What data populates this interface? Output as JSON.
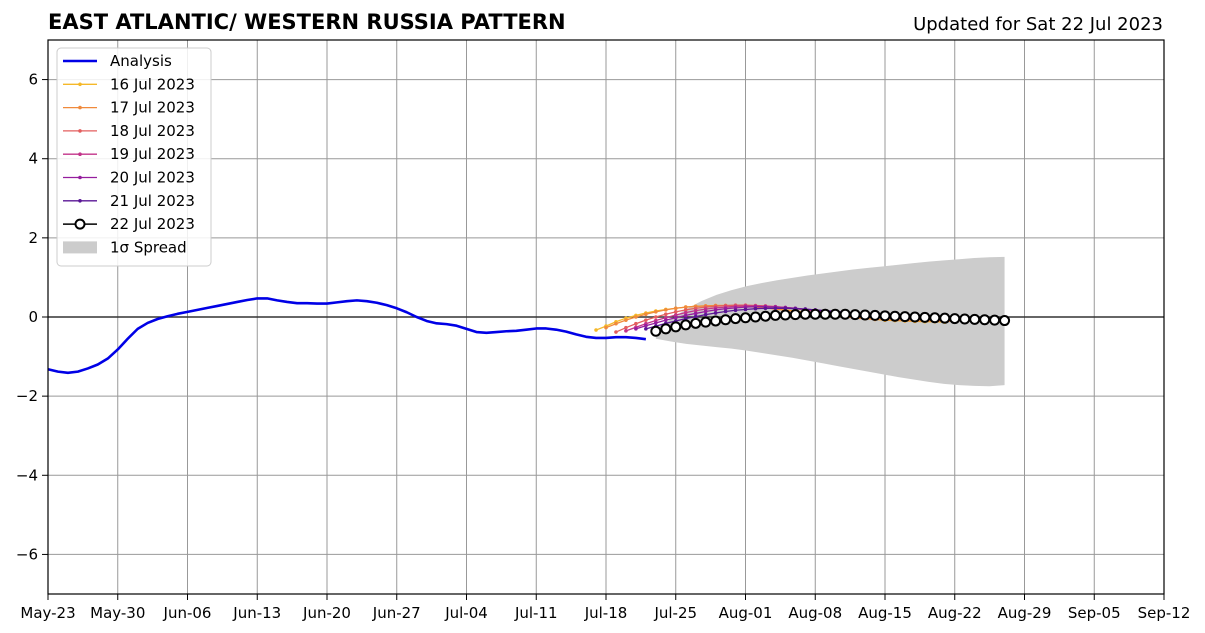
{
  "chart_data": {
    "type": "line",
    "title": "EAST ATLANTIC/ WESTERN RUSSIA PATTERN",
    "subtitle": "Updated for Sat 22 Jul 2023",
    "xlabel": "",
    "ylabel": "",
    "ylim": [
      -7,
      7
    ],
    "yticks": [
      -6,
      -4,
      -2,
      0,
      2,
      4,
      6
    ],
    "ytick_labels": [
      "−6",
      "−4",
      "−2",
      "0",
      "2",
      "4",
      "6"
    ],
    "xlim": [
      "2023-05-23",
      "2023-09-12"
    ],
    "xticks": [
      "2023-05-23",
      "2023-05-30",
      "2023-06-06",
      "2023-06-13",
      "2023-06-20",
      "2023-06-27",
      "2023-07-04",
      "2023-07-11",
      "2023-07-18",
      "2023-07-25",
      "2023-08-01",
      "2023-08-08",
      "2023-08-15",
      "2023-08-22",
      "2023-08-29",
      "2023-09-05",
      "2023-09-12"
    ],
    "xtick_labels": [
      "May-23",
      "May-30",
      "Jun-06",
      "Jun-13",
      "Jun-20",
      "Jun-27",
      "Jul-04",
      "Jul-11",
      "Jul-18",
      "Jul-25",
      "Aug-01",
      "Aug-08",
      "Aug-15",
      "Aug-22",
      "Aug-29",
      "Sep-05",
      "Sep-12"
    ],
    "grid": true,
    "legend_position": "top-left",
    "series": [
      {
        "name": "Analysis",
        "color": "#0000e6",
        "style": "thick-line",
        "points": [
          [
            "2023-05-23",
            -1.32
          ],
          [
            "2023-05-24",
            -1.38
          ],
          [
            "2023-05-25",
            -1.41
          ],
          [
            "2023-05-26",
            -1.38
          ],
          [
            "2023-05-27",
            -1.3
          ],
          [
            "2023-05-28",
            -1.2
          ],
          [
            "2023-05-29",
            -1.05
          ],
          [
            "2023-05-30",
            -0.82
          ],
          [
            "2023-05-31",
            -0.55
          ],
          [
            "2023-06-01",
            -0.3
          ],
          [
            "2023-06-02",
            -0.15
          ],
          [
            "2023-06-03",
            -0.05
          ],
          [
            "2023-06-04",
            0.02
          ],
          [
            "2023-06-05",
            0.08
          ],
          [
            "2023-06-06",
            0.13
          ],
          [
            "2023-06-07",
            0.18
          ],
          [
            "2023-06-08",
            0.23
          ],
          [
            "2023-06-09",
            0.28
          ],
          [
            "2023-06-10",
            0.33
          ],
          [
            "2023-06-11",
            0.38
          ],
          [
            "2023-06-12",
            0.43
          ],
          [
            "2023-06-13",
            0.47
          ],
          [
            "2023-06-14",
            0.47
          ],
          [
            "2023-06-15",
            0.42
          ],
          [
            "2023-06-16",
            0.38
          ],
          [
            "2023-06-17",
            0.35
          ],
          [
            "2023-06-18",
            0.35
          ],
          [
            "2023-06-19",
            0.34
          ],
          [
            "2023-06-20",
            0.34
          ],
          [
            "2023-06-21",
            0.37
          ],
          [
            "2023-06-22",
            0.4
          ],
          [
            "2023-06-23",
            0.42
          ],
          [
            "2023-06-24",
            0.4
          ],
          [
            "2023-06-25",
            0.36
          ],
          [
            "2023-06-26",
            0.3
          ],
          [
            "2023-06-27",
            0.22
          ],
          [
            "2023-06-28",
            0.12
          ],
          [
            "2023-06-29",
            0.0
          ],
          [
            "2023-06-30",
            -0.1
          ],
          [
            "2023-07-01",
            -0.16
          ],
          [
            "2023-07-02",
            -0.18
          ],
          [
            "2023-07-03",
            -0.22
          ],
          [
            "2023-07-04",
            -0.3
          ],
          [
            "2023-07-05",
            -0.38
          ],
          [
            "2023-07-06",
            -0.4
          ],
          [
            "2023-07-07",
            -0.38
          ],
          [
            "2023-07-08",
            -0.36
          ],
          [
            "2023-07-09",
            -0.35
          ],
          [
            "2023-07-10",
            -0.32
          ],
          [
            "2023-07-11",
            -0.29
          ],
          [
            "2023-07-12",
            -0.29
          ],
          [
            "2023-07-13",
            -0.32
          ],
          [
            "2023-07-14",
            -0.37
          ],
          [
            "2023-07-15",
            -0.44
          ],
          [
            "2023-07-16",
            -0.5
          ],
          [
            "2023-07-17",
            -0.53
          ],
          [
            "2023-07-18",
            -0.53
          ],
          [
            "2023-07-19",
            -0.51
          ],
          [
            "2023-07-20",
            -0.51
          ],
          [
            "2023-07-21",
            -0.53
          ],
          [
            "2023-07-22",
            -0.56
          ]
        ]
      },
      {
        "name": "16 Jul 2023",
        "color": "#f5b828",
        "style": "thin-dots",
        "start": "2023-07-17",
        "values": [
          -0.33,
          -0.23,
          -0.12,
          -0.03,
          0.04,
          0.1,
          0.15,
          0.19,
          0.22,
          0.25,
          0.27,
          0.28,
          0.29,
          0.29,
          0.28,
          0.27,
          0.25,
          0.23,
          0.21,
          0.18,
          0.15,
          0.12,
          0.09,
          0.06,
          0.03,
          0.01,
          -0.02,
          -0.04,
          -0.06,
          -0.08,
          -0.09,
          -0.1,
          -0.11,
          -0.12,
          -0.12,
          -0.13
        ]
      },
      {
        "name": "17 Jul 2023",
        "color": "#f08a3c",
        "style": "thin-dots",
        "start": "2023-07-18",
        "values": [
          -0.27,
          -0.17,
          -0.08,
          0.0,
          0.07,
          0.13,
          0.18,
          0.22,
          0.25,
          0.27,
          0.28,
          0.29,
          0.29,
          0.28,
          0.27,
          0.25,
          0.23,
          0.2,
          0.17,
          0.14,
          0.11,
          0.08,
          0.05,
          0.03,
          0.0,
          -0.02,
          -0.04,
          -0.06,
          -0.07,
          -0.08,
          -0.09,
          -0.1,
          -0.1,
          -0.11,
          -0.11,
          -0.11
        ]
      },
      {
        "name": "18 Jul 2023",
        "color": "#e35e5e",
        "style": "thin-dots",
        "start": "2023-07-19",
        "values": [
          -0.38,
          -0.27,
          -0.17,
          -0.08,
          0.0,
          0.07,
          0.13,
          0.18,
          0.22,
          0.25,
          0.27,
          0.29,
          0.3,
          0.3,
          0.29,
          0.28,
          0.26,
          0.24,
          0.21,
          0.18,
          0.15,
          0.12,
          0.09,
          0.06,
          0.04,
          0.02,
          0.0,
          -0.02,
          -0.04,
          -0.05,
          -0.06,
          -0.07,
          -0.08,
          -0.09,
          -0.09,
          -0.09
        ]
      },
      {
        "name": "19 Jul 2023",
        "color": "#c2338a",
        "style": "thin-dots",
        "start": "2023-07-20",
        "values": [
          -0.35,
          -0.26,
          -0.17,
          -0.09,
          -0.02,
          0.05,
          0.11,
          0.16,
          0.2,
          0.23,
          0.25,
          0.27,
          0.28,
          0.28,
          0.27,
          0.26,
          0.24,
          0.22,
          0.19,
          0.16,
          0.14,
          0.11,
          0.09,
          0.07,
          0.05,
          0.03,
          0.01,
          -0.01,
          -0.02,
          -0.03,
          -0.04,
          -0.05,
          -0.06,
          -0.06,
          -0.07,
          -0.07
        ]
      },
      {
        "name": "20 Jul 2023",
        "color": "#951d9e",
        "style": "thin-dots",
        "start": "2023-07-21",
        "values": [
          -0.3,
          -0.22,
          -0.15,
          -0.08,
          -0.02,
          0.04,
          0.09,
          0.14,
          0.18,
          0.21,
          0.23,
          0.25,
          0.26,
          0.26,
          0.25,
          0.24,
          0.22,
          0.2,
          0.18,
          0.15,
          0.13,
          0.11,
          0.09,
          0.07,
          0.05,
          0.03,
          0.02,
          0.0,
          -0.01,
          -0.02,
          -0.03,
          -0.04,
          -0.04,
          -0.05,
          -0.05,
          -0.05
        ]
      },
      {
        "name": "21 Jul 2023",
        "color": "#5a1696",
        "style": "thin-dots",
        "start": "2023-07-22",
        "values": [
          -0.3,
          -0.23,
          -0.16,
          -0.1,
          -0.04,
          0.01,
          0.06,
          0.1,
          0.14,
          0.17,
          0.19,
          0.21,
          0.22,
          0.22,
          0.22,
          0.21,
          0.2,
          0.18,
          0.16,
          0.14,
          0.12,
          0.1,
          0.08,
          0.06,
          0.05,
          0.03,
          0.02,
          0.01,
          0.0,
          -0.01,
          -0.02,
          -0.03,
          -0.03,
          -0.04,
          -0.04,
          -0.04
        ]
      },
      {
        "name": "22 Jul 2023",
        "color": "#000000",
        "style": "circles",
        "start": "2023-07-23",
        "values": [
          -0.36,
          -0.3,
          -0.25,
          -0.2,
          -0.16,
          -0.13,
          -0.1,
          -0.07,
          -0.04,
          -0.02,
          0.0,
          0.02,
          0.04,
          0.05,
          0.06,
          0.07,
          0.07,
          0.07,
          0.07,
          0.07,
          0.06,
          0.05,
          0.04,
          0.03,
          0.02,
          0.01,
          0.0,
          -0.01,
          -0.02,
          -0.03,
          -0.04,
          -0.05,
          -0.06,
          -0.07,
          -0.08,
          -0.09
        ]
      }
    ],
    "spread": {
      "name": "1σ Spread",
      "color": "#cccccc",
      "start": "2023-07-23",
      "end": "2023-08-27",
      "upper": [
        [
          0,
          -0.3
        ],
        [
          2,
          -0.05
        ],
        [
          4,
          0.2
        ],
        [
          6,
          0.4
        ],
        [
          8,
          0.56
        ],
        [
          10,
          0.68
        ],
        [
          12,
          0.78
        ],
        [
          14,
          0.86
        ],
        [
          16,
          0.93
        ],
        [
          18,
          0.99
        ],
        [
          20,
          1.05
        ],
        [
          22,
          1.1
        ],
        [
          24,
          1.15
        ],
        [
          26,
          1.2
        ],
        [
          28,
          1.24
        ],
        [
          30,
          1.28
        ],
        [
          32,
          1.32
        ],
        [
          34,
          1.36
        ],
        [
          36,
          1.4
        ],
        [
          38,
          1.43
        ],
        [
          40,
          1.46
        ],
        [
          42,
          1.49
        ],
        [
          44,
          1.51
        ],
        [
          46,
          1.52
        ]
      ],
      "lower": [
        [
          0,
          -0.55
        ],
        [
          2,
          -0.62
        ],
        [
          4,
          -0.68
        ],
        [
          6,
          -0.72
        ],
        [
          8,
          -0.76
        ],
        [
          10,
          -0.8
        ],
        [
          12,
          -0.85
        ],
        [
          14,
          -0.91
        ],
        [
          16,
          -0.97
        ],
        [
          18,
          -1.03
        ],
        [
          20,
          -1.1
        ],
        [
          22,
          -1.17
        ],
        [
          24,
          -1.24
        ],
        [
          26,
          -1.31
        ],
        [
          28,
          -1.38
        ],
        [
          30,
          -1.45
        ],
        [
          32,
          -1.52
        ],
        [
          34,
          -1.58
        ],
        [
          36,
          -1.64
        ],
        [
          38,
          -1.69
        ],
        [
          40,
          -1.72
        ],
        [
          42,
          -1.74
        ],
        [
          44,
          -1.75
        ],
        [
          46,
          -1.72
        ]
      ]
    }
  }
}
